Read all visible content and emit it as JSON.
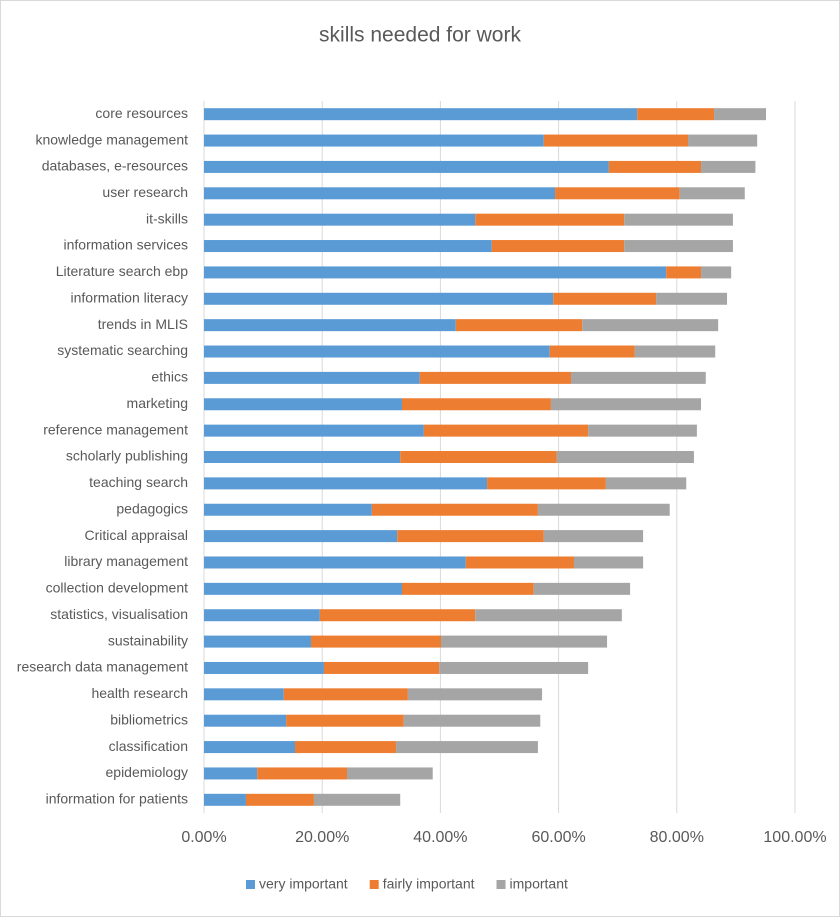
{
  "chart_data": {
    "type": "stacked-bar-horizontal",
    "title": "skills needed for work",
    "categories": [
      "core resources",
      "knowledge management",
      "databases, e-resources",
      "user research",
      "it-skills",
      "information services",
      "Literature search ebp",
      "information literacy",
      "trends in MLIS",
      "systematic searching",
      "ethics",
      "marketing",
      "reference management",
      "scholarly publishing",
      "teaching search",
      "pedagogics",
      "Critical appraisal",
      "library management",
      "collection development",
      "statistics, visualisation",
      "sustainability",
      "research data management",
      "health research",
      "bibliometrics",
      "classification",
      "epidemiology",
      "information for patients"
    ],
    "series": [
      {
        "name": "very important",
        "color": "#5b9bd5",
        "values": [
          73.3,
          57.5,
          68.5,
          59.4,
          45.9,
          48.7,
          78.2,
          59.1,
          42.6,
          58.5,
          36.5,
          33.5,
          37.2,
          33.2,
          47.9,
          28.4,
          32.7,
          44.3,
          33.5,
          19.6,
          18.1,
          20.3,
          13.5,
          13.9,
          15.4,
          9.0,
          7.1
        ]
      },
      {
        "name": "fairly important",
        "color": "#ed7d31",
        "values": [
          13.0,
          24.4,
          15.6,
          21.1,
          25.2,
          22.4,
          5.9,
          17.4,
          21.4,
          14.4,
          25.6,
          25.2,
          27.8,
          26.5,
          20.1,
          28.1,
          24.8,
          18.3,
          22.3,
          26.3,
          22.0,
          19.5,
          21.0,
          19.9,
          17.1,
          15.2,
          11.5
        ]
      },
      {
        "name": "important",
        "color": "#a5a5a5",
        "values": [
          8.8,
          11.7,
          9.2,
          11.0,
          18.4,
          18.4,
          5.1,
          12.0,
          23.0,
          13.6,
          22.8,
          25.4,
          18.4,
          23.2,
          13.6,
          22.3,
          16.8,
          11.7,
          16.3,
          24.8,
          28.1,
          25.2,
          22.7,
          23.1,
          24.0,
          14.5,
          14.6
        ]
      }
    ],
    "xlim": [
      0,
      100
    ],
    "xticks": [
      {
        "value": 0,
        "label": "0.00%"
      },
      {
        "value": 20,
        "label": "20.00%"
      },
      {
        "value": 40,
        "label": "40.00%"
      },
      {
        "value": 60,
        "label": "60.00%"
      },
      {
        "value": 80,
        "label": "80.00%"
      },
      {
        "value": 100,
        "label": "100.00%"
      }
    ],
    "grid": true,
    "legend": "bottom"
  }
}
